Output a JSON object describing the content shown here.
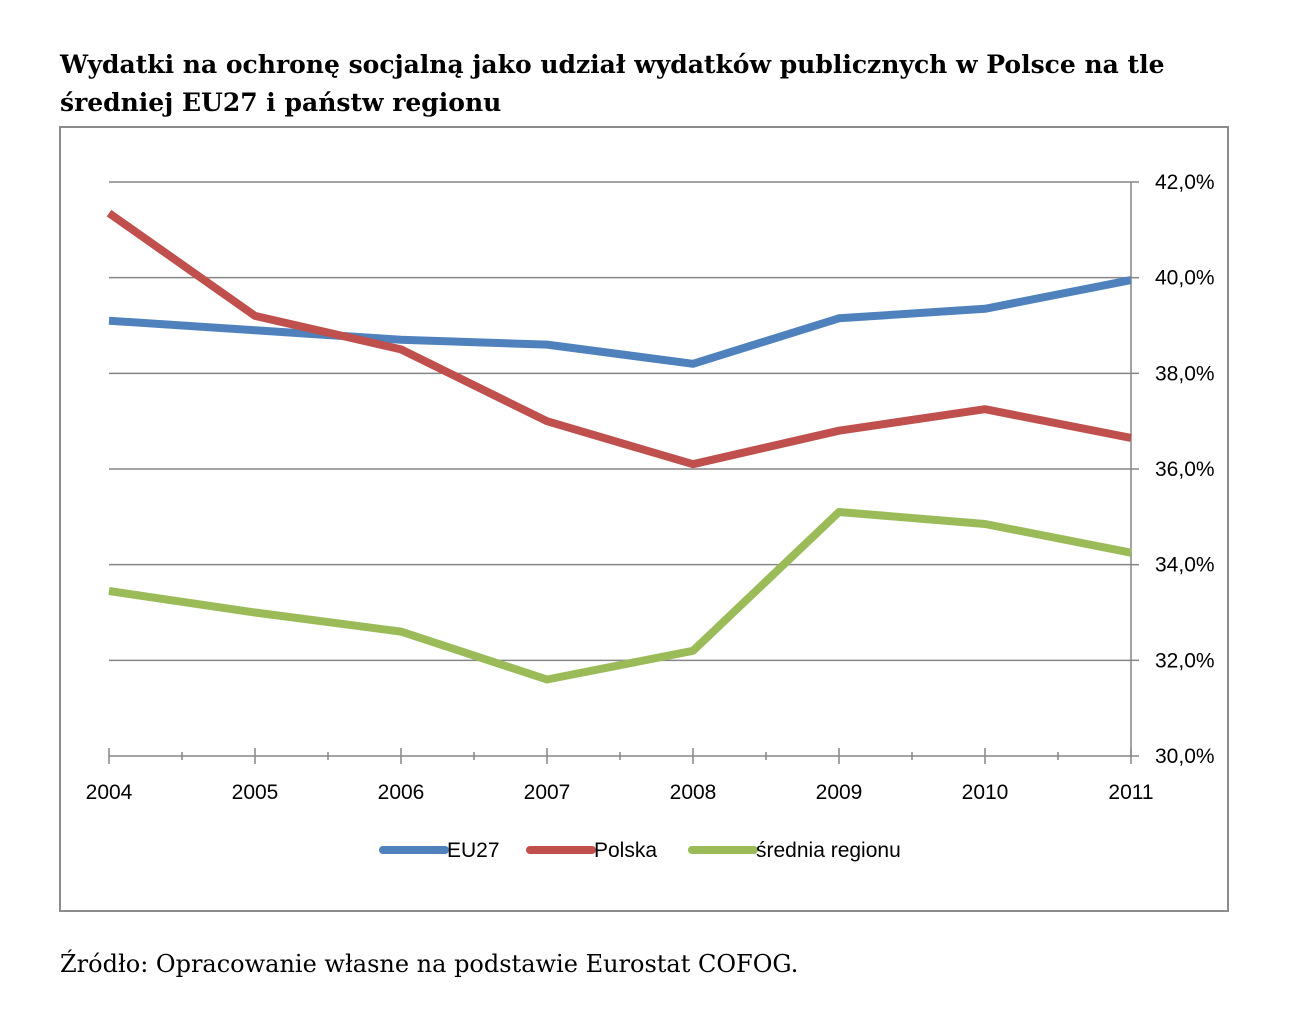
{
  "title": "Wydatki na ochronę socjalną jako udział wydatków publicznych w Polsce na tle średniej EU27 i państw regionu",
  "source": "Źródło: Opracowanie własne na podstawie Eurostat COFOG.",
  "chart_data": {
    "type": "line",
    "title": "Wydatki na ochronę socjalną jako udział wydatków publicznych w Polsce na tle średniej EU27 i państw regionu",
    "x": [
      "2004",
      "2005",
      "2006",
      "2007",
      "2008",
      "2009",
      "2010",
      "2011"
    ],
    "series": [
      {
        "name": "EU27",
        "color": "#4f81bd",
        "values": [
          39.1,
          38.9,
          38.7,
          38.6,
          38.2,
          39.15,
          39.35,
          39.95
        ]
      },
      {
        "name": "Polska",
        "color": "#c0504d",
        "values": [
          41.35,
          39.2,
          38.5,
          37.0,
          36.1,
          36.8,
          37.25,
          36.65
        ]
      },
      {
        "name": "średnia regionu",
        "color": "#9bbb59",
        "values": [
          33.45,
          33.0,
          32.6,
          31.6,
          32.2,
          35.1,
          34.85,
          34.25
        ]
      }
    ],
    "xlabel": "",
    "ylabel": "",
    "ylim": [
      30,
      42
    ],
    "y_ticks": [
      30,
      32,
      34,
      36,
      38,
      40,
      42
    ],
    "y_tick_labels": [
      "30,0%",
      "32,0%",
      "34,0%",
      "36,0%",
      "38,0%",
      "40,0%",
      "42,0%"
    ],
    "y_axis_position": "right",
    "grid": true,
    "legend_position": "bottom"
  }
}
